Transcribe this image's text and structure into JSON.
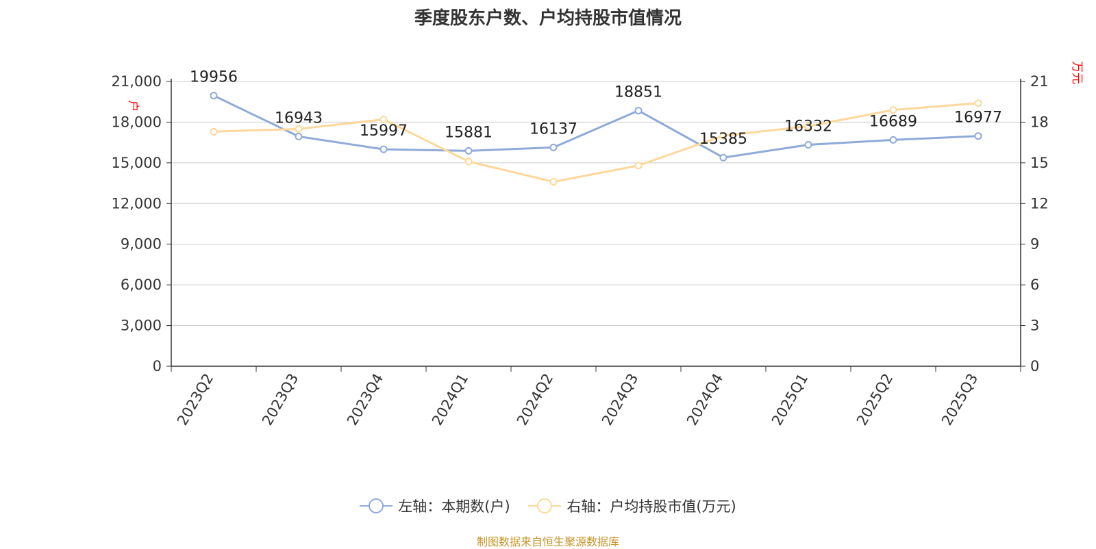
{
  "title": "季度股东户数、户均持股市值情况",
  "source": "制图数据来自恒生聚源数据库",
  "legend": {
    "left": "左轴：本期数(户)",
    "right": "右轴：户均持股市值(万元)"
  },
  "colors": {
    "left_series": "#8eaad8",
    "right_series": "#fdd89a",
    "axis_unit": "#ff0000",
    "text": "#333333",
    "grid": "#cccccc"
  },
  "chart_data": {
    "type": "line",
    "title": "季度股东户数、户均持股市值情况",
    "categories": [
      "2023Q2",
      "2023Q3",
      "2023Q4",
      "2024Q1",
      "2024Q2",
      "2024Q3",
      "2024Q4",
      "2025Q1",
      "2025Q2",
      "2025Q3"
    ],
    "left_axis": {
      "label": "户",
      "ylim": [
        0,
        21000
      ],
      "ticks": [
        0,
        3000,
        6000,
        9000,
        12000,
        15000,
        18000,
        21000
      ],
      "tick_labels": [
        "0",
        "3,000",
        "6,000",
        "9,000",
        "12,000",
        "15,000",
        "18,000",
        "21,000"
      ]
    },
    "right_axis": {
      "label": "万元",
      "ylim": [
        0,
        21
      ],
      "ticks": [
        0,
        3,
        6,
        9,
        12,
        15,
        18,
        21
      ],
      "tick_labels": [
        "0",
        "3",
        "6",
        "9",
        "12",
        "15",
        "18",
        "21"
      ]
    },
    "series": [
      {
        "name": "左轴：本期数(户)",
        "axis": "left",
        "values": [
          19956,
          16943,
          15997,
          15881,
          16137,
          18851,
          15385,
          16332,
          16689,
          16977
        ],
        "data_labels": [
          "19956",
          "16943",
          "15997",
          "15881",
          "16137",
          "18851",
          "15385",
          "16332",
          "16689",
          "16977"
        ]
      },
      {
        "name": "右轴：户均持股市值(万元)",
        "axis": "right",
        "values": [
          17.3,
          17.5,
          18.2,
          15.1,
          13.6,
          14.8,
          17.0,
          17.7,
          18.9,
          19.4
        ]
      }
    ],
    "grid": true,
    "legend_position": "bottom"
  }
}
